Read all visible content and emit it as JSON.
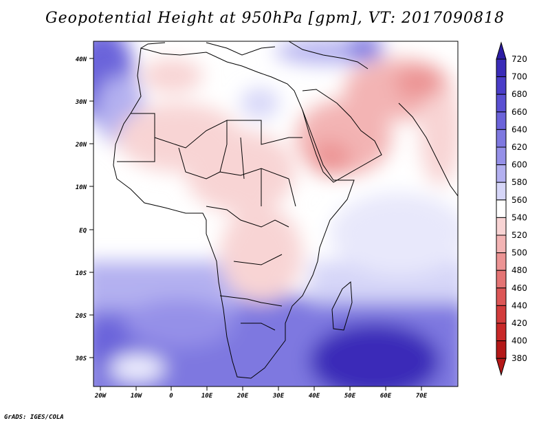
{
  "map": {
    "title": "Geopotential Height at 950hPa [gpm], VT: 2017090818",
    "credit": "GrADS: IGES/COLA",
    "lat_labels": [
      "40N",
      "30N",
      "20N",
      "10N",
      "EQ",
      "10S",
      "20S",
      "30S"
    ],
    "lat_values": [
      40,
      30,
      20,
      10,
      0,
      -10,
      -20,
      -30
    ],
    "lon_labels": [
      "20W",
      "10W",
      "0",
      "10E",
      "20E",
      "30E",
      "40E",
      "50E",
      "60E",
      "70E"
    ],
    "lon_values": [
      -20,
      -10,
      0,
      10,
      20,
      30,
      40,
      50,
      60,
      70
    ],
    "extent": {
      "lon_min": -22,
      "lon_max": 80,
      "lat_min": -37,
      "lat_max": 45
    }
  },
  "colorbar": {
    "levels": [
      720,
      700,
      680,
      660,
      640,
      620,
      600,
      580,
      560,
      540,
      520,
      500,
      480,
      460,
      440,
      420,
      400,
      380
    ],
    "colors": [
      "#2c1ca3",
      "#3a2cb8",
      "#4a3dc8",
      "#5a50d2",
      "#6b63da",
      "#7e78e0",
      "#9590e8",
      "#b3b0f0",
      "#d6d6f8",
      "#ffffff",
      "#f8d4d4",
      "#f3b4b4",
      "#ec9494",
      "#e47474",
      "#dc5656",
      "#d23c3c",
      "#c82828",
      "#b41818"
    ]
  }
}
